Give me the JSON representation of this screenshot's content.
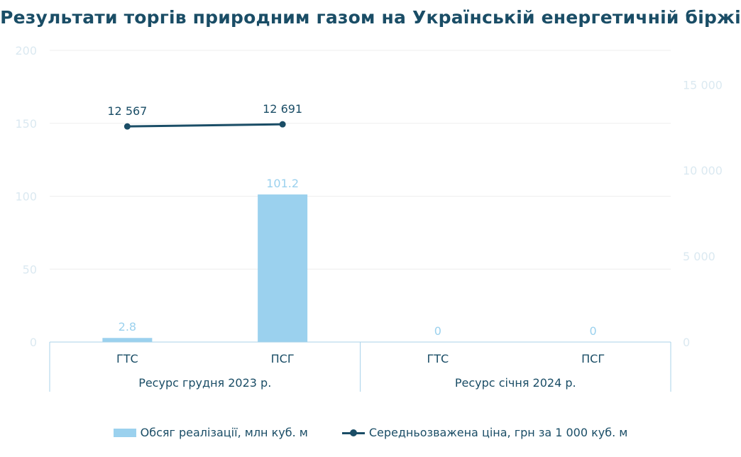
{
  "chart_data": {
    "type": "bar",
    "title": "Результати торгів природним газом на Українській енергетичній біржі",
    "categories": [
      "ГТС",
      "ПСГ",
      "ГТС",
      "ПСГ"
    ],
    "groups": [
      {
        "label": "Ресурс грудня 2023 р.",
        "categories": [
          "ГТС",
          "ПСГ"
        ]
      },
      {
        "label": "Ресурс січня 2024 р.",
        "categories": [
          "ГТС",
          "ПСГ"
        ]
      }
    ],
    "series": [
      {
        "name": "Обсяг реалізації, млн куб. м",
        "type": "bar",
        "axis": "left",
        "values": [
          2.8,
          101.2,
          0,
          0
        ],
        "labels": [
          "2.8",
          "101.2",
          "0",
          "0"
        ],
        "color": "#9bd1ee"
      },
      {
        "name": "Середньозважена ціна, грн за 1 000 куб. м",
        "type": "line",
        "axis": "right",
        "values": [
          12567,
          12691,
          null,
          null
        ],
        "labels": [
          "12 567",
          "12 691",
          "",
          ""
        ],
        "color": "#1a4d66"
      }
    ],
    "y_left": {
      "min": 0,
      "max": 200,
      "ticks": [
        0,
        50,
        100,
        150,
        200
      ],
      "tick_labels": [
        "0",
        "50",
        "100",
        "150",
        "200"
      ]
    },
    "y_right": {
      "min": 0,
      "max": 17000,
      "ticks": [
        0,
        5000,
        10000,
        15000
      ],
      "tick_labels": [
        "0",
        "5 000",
        "10 000",
        "15 000"
      ]
    },
    "grid": true,
    "legend_position": "bottom",
    "colors": {
      "title": "#1a4d66",
      "bar": "#9bd1ee",
      "line": "#1a4d66",
      "tick": "#dbe9f1",
      "grid": "#eeeeee",
      "axis": "#a9d3ea"
    }
  }
}
